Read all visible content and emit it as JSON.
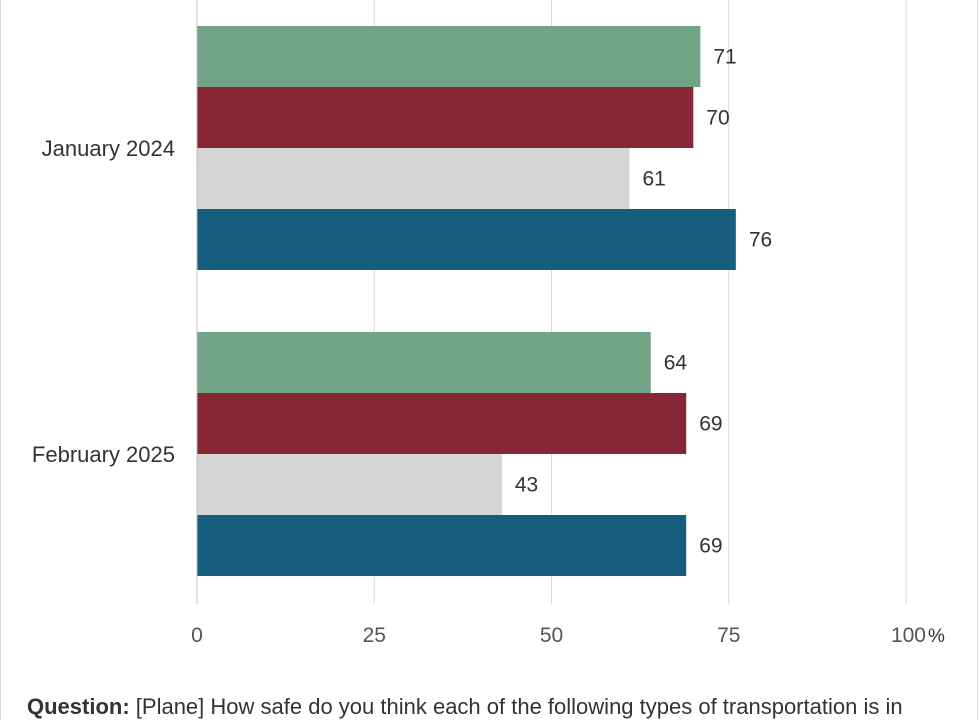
{
  "chart_data": {
    "type": "bar",
    "orientation": "horizontal",
    "categories": [
      "January 2024",
      "February 2025"
    ],
    "series": [
      {
        "color": "#72a488",
        "values": [
          71,
          64
        ]
      },
      {
        "color": "#862733",
        "values": [
          70,
          69
        ]
      },
      {
        "color": "#d5d5d5",
        "values": [
          61,
          43
        ]
      },
      {
        "color": "#175e7e",
        "values": [
          76,
          69
        ]
      }
    ],
    "xlim": [
      0,
      100
    ],
    "x_ticks": [
      "0",
      "25",
      "50",
      "75",
      "100"
    ],
    "unit": "%",
    "grid": true,
    "legend": "none"
  },
  "footer": {
    "question_label": "Question:",
    "question_text": " [Plane] How safe do you think each of the following types of transportation is in"
  }
}
